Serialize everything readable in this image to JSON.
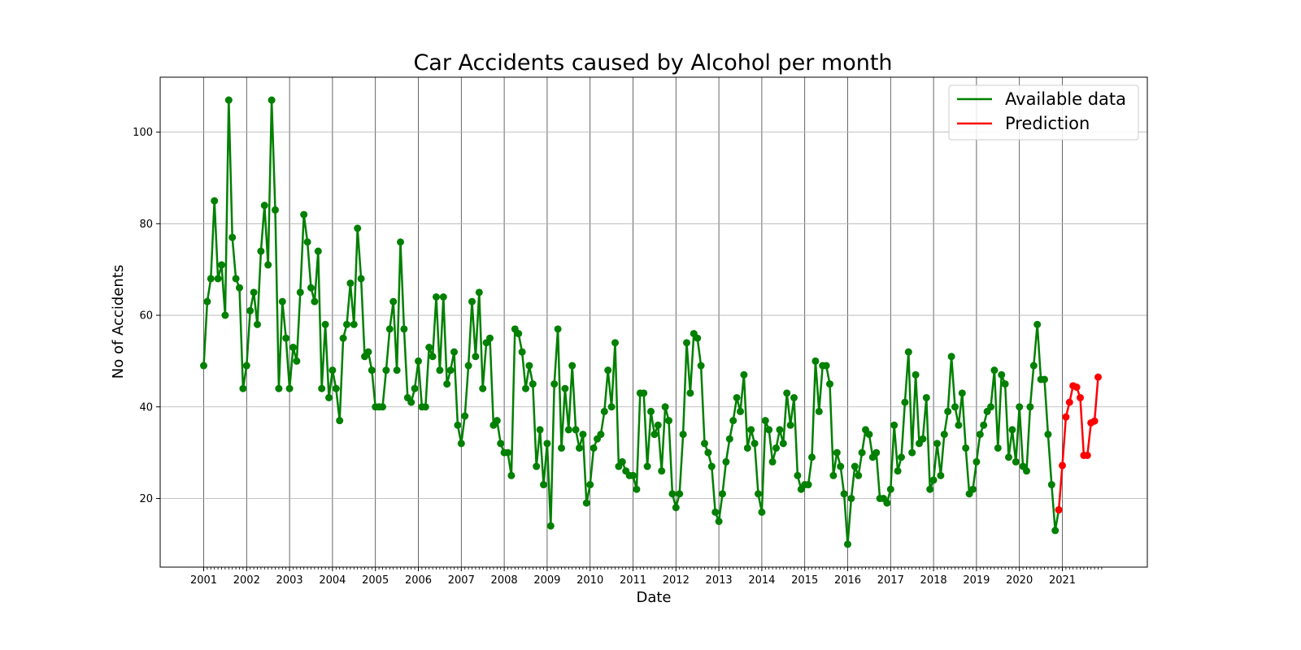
{
  "chart_data": {
    "type": "line",
    "title": "Car Accidents caused by Alcohol per month",
    "xlabel": "Date",
    "ylabel": "No of Accidents",
    "ylim": [
      5,
      112
    ],
    "yticks": [
      20,
      40,
      60,
      80,
      100
    ],
    "xticks": [
      "2001",
      "2002",
      "2003",
      "2004",
      "2005",
      "2006",
      "2007",
      "2008",
      "2009",
      "2010",
      "2011",
      "2012",
      "2013",
      "2014",
      "2015",
      "2016",
      "2017",
      "2018",
      "2019",
      "2020",
      "2021"
    ],
    "grid": true,
    "legend_position": "top-right",
    "series": [
      {
        "name": "Available data",
        "color": "#008000",
        "values": [
          49,
          63,
          68,
          85,
          68,
          71,
          60,
          107,
          77,
          68,
          66,
          44,
          49,
          61,
          65,
          58,
          74,
          84,
          71,
          107,
          83,
          44,
          63,
          55,
          44,
          53,
          50,
          65,
          82,
          76,
          66,
          63,
          74,
          44,
          58,
          42,
          48,
          44,
          37,
          55,
          58,
          67,
          58,
          79,
          68,
          51,
          52,
          48,
          40,
          40,
          40,
          48,
          57,
          63,
          48,
          76,
          57,
          42,
          41,
          44,
          50,
          40,
          40,
          53,
          51,
          64,
          48,
          64,
          45,
          48,
          52,
          36,
          32,
          38,
          49,
          63,
          51,
          65,
          44,
          54,
          55,
          36,
          37,
          32,
          30,
          30,
          25,
          57,
          56,
          52,
          44,
          49,
          45,
          27,
          35,
          23,
          32,
          14,
          45,
          57,
          31,
          44,
          35,
          49,
          35,
          31,
          34,
          19,
          23,
          31,
          33,
          34,
          39,
          48,
          40,
          54,
          27,
          28,
          26,
          25,
          25,
          22,
          43,
          43,
          27,
          39,
          34,
          36,
          26,
          40,
          37,
          21,
          18,
          21,
          34,
          54,
          43,
          56,
          55,
          49,
          32,
          30,
          27,
          17,
          15,
          21,
          28,
          33,
          37,
          42,
          39,
          47,
          31,
          35,
          32,
          21,
          17,
          37,
          35,
          28,
          31,
          35,
          32,
          43,
          36,
          42,
          25,
          22,
          23,
          23,
          29,
          50,
          39,
          49,
          49,
          45,
          25,
          30,
          27,
          21,
          10,
          20,
          27,
          25,
          30,
          35,
          34,
          29,
          30,
          20,
          20,
          19,
          22,
          36,
          26,
          29,
          41,
          52,
          30,
          47,
          32,
          33,
          42,
          22,
          24,
          32,
          25,
          34,
          39,
          51,
          40,
          36,
          43,
          31,
          21,
          22,
          28,
          34,
          36,
          39,
          40,
          48,
          31,
          47,
          45,
          29,
          35,
          28,
          40,
          27,
          26,
          40,
          49,
          58,
          46,
          46,
          34,
          23,
          13,
          17.5
        ]
      },
      {
        "name": "Prediction",
        "color": "#ff0000",
        "values": [
          17.5,
          27.2,
          37.8,
          41,
          44.6,
          44.3,
          42,
          29.4,
          29.4,
          36.5,
          36.9,
          46.5
        ]
      }
    ]
  }
}
